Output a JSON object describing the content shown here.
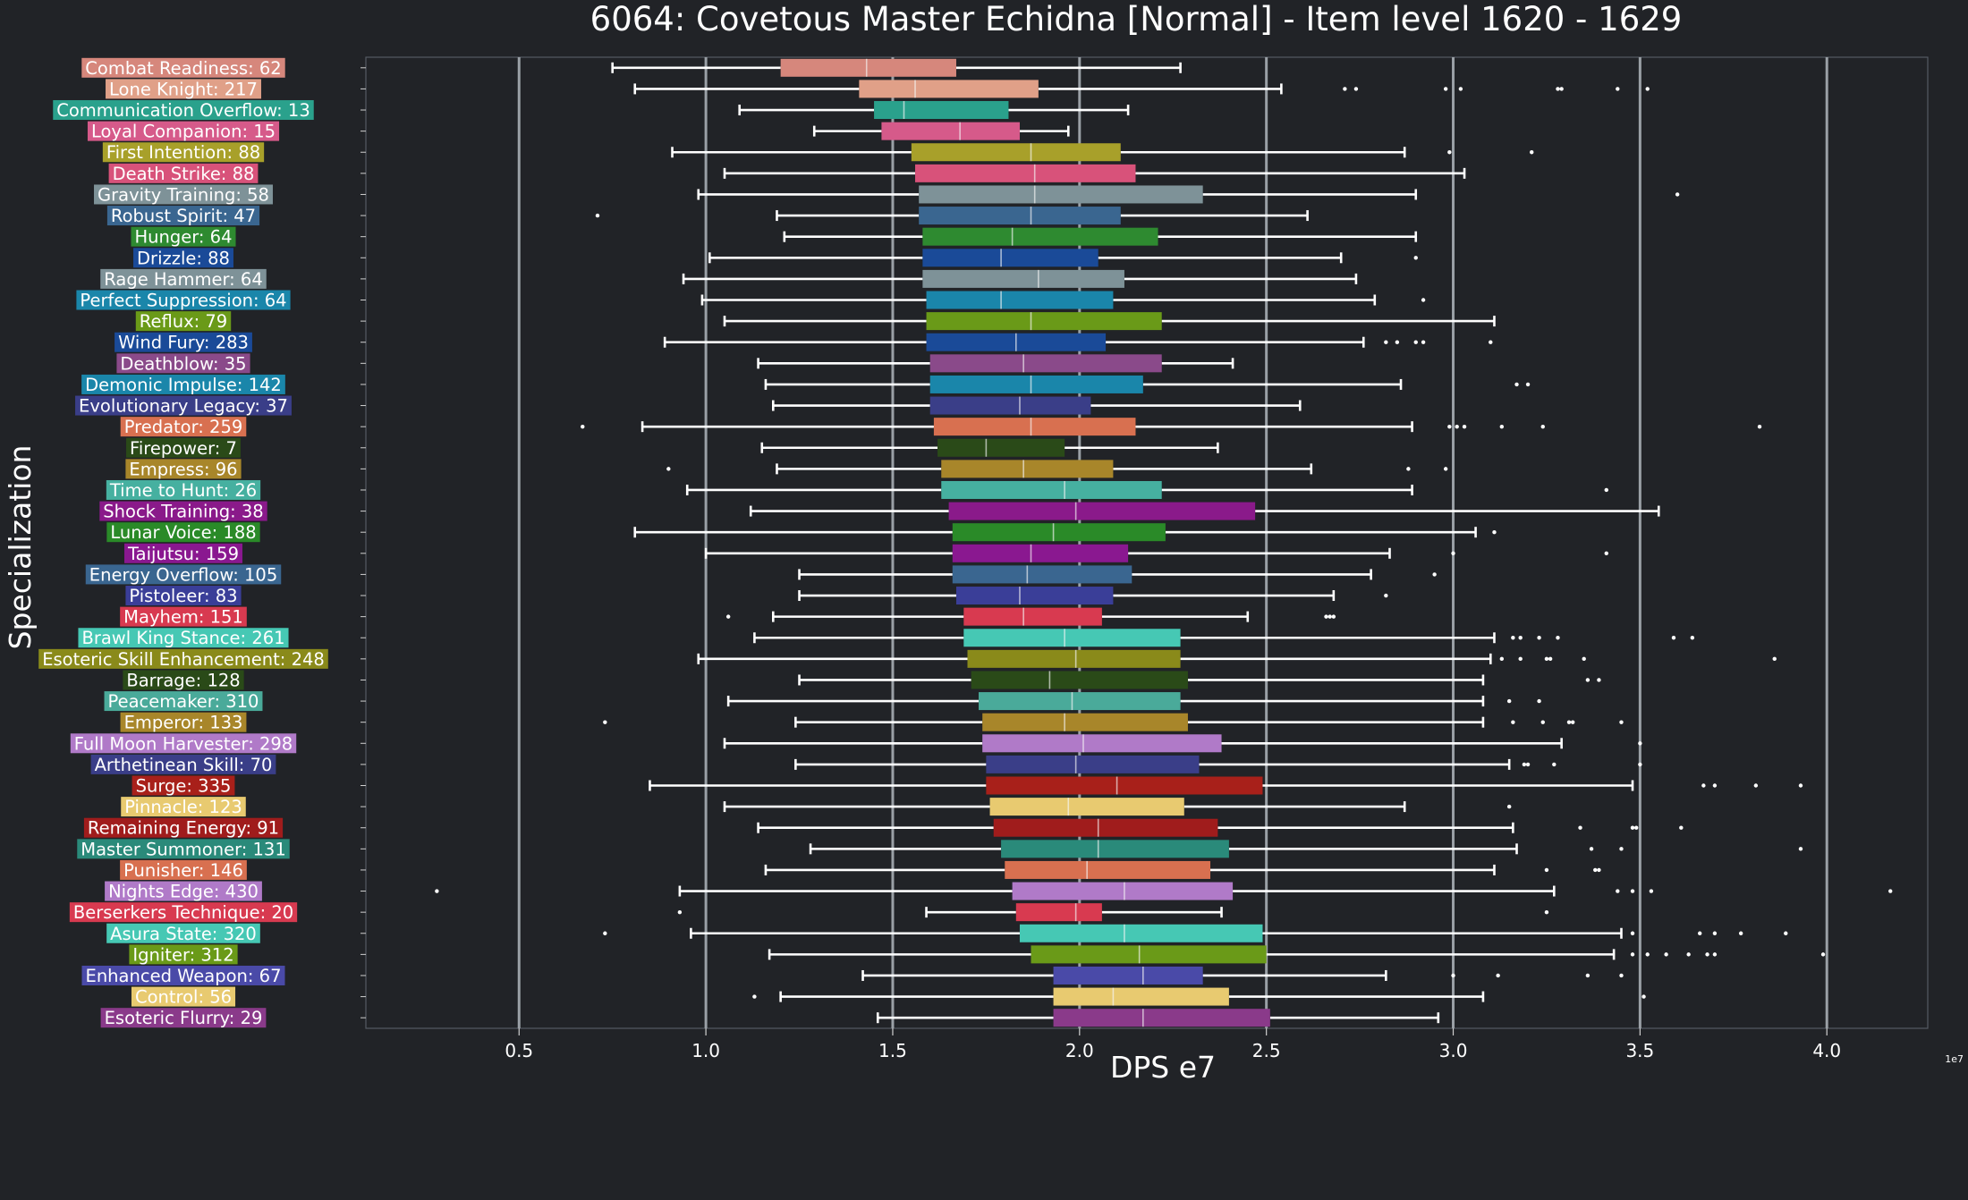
{
  "chart_data": {
    "type": "box",
    "title": "6064: Covetous Master Echidna [Normal] - Item level 1620 - 1629",
    "xlabel": "DPS e7",
    "ylabel": "Specialization",
    "x_offset_label": "1e7",
    "xlim": [
      0.09,
      4.27
    ],
    "xticks": [
      0.5,
      1.0,
      1.5,
      2.0,
      2.5,
      3.0,
      3.5,
      4.0
    ],
    "xtick_labels": [
      "0.5",
      "1.0",
      "1.5",
      "2.0",
      "2.5",
      "3.0",
      "3.5",
      "4.0"
    ],
    "grid": "vertical",
    "orientation": "horizontal",
    "series": [
      {
        "label": "Combat Readiness: 62",
        "color": "#d6877c",
        "whisker_low": 0.75,
        "q1": 1.2,
        "median": 1.43,
        "q3": 1.67,
        "whisker_high": 2.27,
        "outliers": []
      },
      {
        "label": "Lone Knight: 217",
        "color": "#e0a088",
        "whisker_low": 0.81,
        "q1": 1.41,
        "median": 1.56,
        "q3": 1.89,
        "whisker_high": 2.54,
        "outliers": [
          2.71,
          2.74,
          2.98,
          3.02,
          3.28,
          3.29,
          3.44,
          3.52
        ]
      },
      {
        "label": "Communication Overflow: 13",
        "color": "#2aa18c",
        "whisker_low": 1.09,
        "q1": 1.45,
        "median": 1.53,
        "q3": 1.81,
        "whisker_high": 2.13,
        "outliers": []
      },
      {
        "label": "Loyal Companion: 15",
        "color": "#d65a8a",
        "whisker_low": 1.29,
        "q1": 1.47,
        "median": 1.68,
        "q3": 1.84,
        "whisker_high": 1.97,
        "outliers": []
      },
      {
        "label": "First Intention: 88",
        "color": "#a8a02a",
        "whisker_low": 0.91,
        "q1": 1.55,
        "median": 1.87,
        "q3": 2.11,
        "whisker_high": 2.87,
        "outliers": [
          2.99,
          3.21
        ]
      },
      {
        "label": "Death Strike: 88",
        "color": "#d8527a",
        "whisker_low": 1.05,
        "q1": 1.56,
        "median": 1.88,
        "q3": 2.15,
        "whisker_high": 3.03,
        "outliers": []
      },
      {
        "label": "Gravity Training: 58",
        "color": "#7e9298",
        "whisker_low": 0.98,
        "q1": 1.57,
        "median": 1.88,
        "q3": 2.33,
        "whisker_high": 2.9,
        "outliers": [
          3.6
        ]
      },
      {
        "label": "Robust Spirit: 47",
        "color": "#3a6690",
        "whisker_low": 1.19,
        "q1": 1.57,
        "median": 1.87,
        "q3": 2.11,
        "whisker_high": 2.61,
        "outliers": [
          0.71
        ]
      },
      {
        "label": "Hunger: 64",
        "color": "#2e8a30",
        "whisker_low": 1.21,
        "q1": 1.58,
        "median": 1.82,
        "q3": 2.21,
        "whisker_high": 2.9,
        "outliers": []
      },
      {
        "label": "Drizzle: 88",
        "color": "#1a4a98",
        "whisker_low": 1.01,
        "q1": 1.58,
        "median": 1.79,
        "q3": 2.05,
        "whisker_high": 2.7,
        "outliers": [
          2.9
        ]
      },
      {
        "label": "Rage Hammer: 64",
        "color": "#7e9298",
        "whisker_low": 0.94,
        "q1": 1.58,
        "median": 1.89,
        "q3": 2.12,
        "whisker_high": 2.74,
        "outliers": []
      },
      {
        "label": "Perfect Suppression: 64",
        "color": "#1a86aa",
        "whisker_low": 0.99,
        "q1": 1.59,
        "median": 1.79,
        "q3": 2.09,
        "whisker_high": 2.79,
        "outliers": [
          2.92
        ]
      },
      {
        "label": "Reflux: 79",
        "color": "#6a9a18",
        "whisker_low": 1.05,
        "q1": 1.59,
        "median": 1.87,
        "q3": 2.22,
        "whisker_high": 3.11,
        "outliers": []
      },
      {
        "label": "Wind Fury: 283",
        "color": "#1a4a98",
        "whisker_low": 0.89,
        "q1": 1.59,
        "median": 1.83,
        "q3": 2.07,
        "whisker_high": 2.76,
        "outliers": [
          2.82,
          2.85,
          2.9,
          2.92,
          3.1
        ]
      },
      {
        "label": "Deathblow: 35",
        "color": "#8a4a8a",
        "whisker_low": 1.14,
        "q1": 1.6,
        "median": 1.85,
        "q3": 2.22,
        "whisker_high": 2.41,
        "outliers": []
      },
      {
        "label": "Demonic Impulse: 142",
        "color": "#1a86aa",
        "whisker_low": 1.16,
        "q1": 1.6,
        "median": 1.87,
        "q3": 2.17,
        "whisker_high": 2.86,
        "outliers": [
          3.17,
          3.2
        ]
      },
      {
        "label": "Evolutionary Legacy: 37",
        "color": "#3a3e88",
        "whisker_low": 1.18,
        "q1": 1.6,
        "median": 1.84,
        "q3": 2.03,
        "whisker_high": 2.59,
        "outliers": []
      },
      {
        "label": "Predator: 259",
        "color": "#d87050",
        "whisker_low": 0.83,
        "q1": 1.61,
        "median": 1.87,
        "q3": 2.15,
        "whisker_high": 2.89,
        "outliers": [
          0.67,
          2.99,
          3.01,
          3.03,
          3.13,
          3.24,
          3.82
        ]
      },
      {
        "label": "Firepower: 7",
        "color": "#2a4a18",
        "whisker_low": 1.15,
        "q1": 1.62,
        "median": 1.75,
        "q3": 1.96,
        "whisker_high": 2.37,
        "outliers": []
      },
      {
        "label": "Empress: 96",
        "color": "#a8862a",
        "whisker_low": 1.19,
        "q1": 1.63,
        "median": 1.85,
        "q3": 2.09,
        "whisker_high": 2.62,
        "outliers": [
          0.9,
          2.88,
          2.98
        ]
      },
      {
        "label": "Time to Hunt: 26",
        "color": "#46b0a0",
        "whisker_low": 0.95,
        "q1": 1.63,
        "median": 1.96,
        "q3": 2.22,
        "whisker_high": 2.89,
        "outliers": [
          3.41
        ]
      },
      {
        "label": "Shock Training: 38",
        "color": "#8a1a8a",
        "whisker_low": 1.12,
        "q1": 1.65,
        "median": 1.99,
        "q3": 2.47,
        "whisker_high": 3.55,
        "outliers": []
      },
      {
        "label": "Lunar Voice: 188",
        "color": "#2a8a28",
        "whisker_low": 0.81,
        "q1": 1.66,
        "median": 1.93,
        "q3": 2.23,
        "whisker_high": 3.06,
        "outliers": [
          3.11
        ]
      },
      {
        "label": "Taijutsu: 159",
        "color": "#8a1890",
        "whisker_low": 1.0,
        "q1": 1.66,
        "median": 1.87,
        "q3": 2.13,
        "whisker_high": 2.83,
        "outliers": [
          3.0,
          3.41
        ]
      },
      {
        "label": "Energy Overflow: 105",
        "color": "#3a6690",
        "whisker_low": 1.25,
        "q1": 1.66,
        "median": 1.86,
        "q3": 2.14,
        "whisker_high": 2.78,
        "outliers": [
          2.95
        ]
      },
      {
        "label": "Pistoleer: 83",
        "color": "#3a3e98",
        "whisker_low": 1.25,
        "q1": 1.67,
        "median": 1.84,
        "q3": 2.09,
        "whisker_high": 2.68,
        "outliers": [
          2.82
        ]
      },
      {
        "label": "Mayhem: 151",
        "color": "#d83a50",
        "whisker_low": 1.18,
        "q1": 1.69,
        "median": 1.85,
        "q3": 2.06,
        "whisker_high": 2.45,
        "outliers": [
          1.06,
          2.66,
          2.67,
          2.68
        ]
      },
      {
        "label": "Brawl King Stance: 261",
        "color": "#46c8b4",
        "whisker_low": 1.13,
        "q1": 1.69,
        "median": 1.96,
        "q3": 2.27,
        "whisker_high": 3.11,
        "outliers": [
          3.16,
          3.18,
          3.23,
          3.28,
          3.59,
          3.64
        ]
      },
      {
        "label": "Esoteric Skill Enhancement: 248",
        "color": "#8a8a1a",
        "whisker_low": 0.98,
        "q1": 1.7,
        "median": 1.99,
        "q3": 2.27,
        "whisker_high": 3.1,
        "outliers": [
          3.13,
          3.18,
          3.25,
          3.26,
          3.35,
          3.86
        ]
      },
      {
        "label": "Barrage: 128",
        "color": "#2a4a18",
        "whisker_low": 1.25,
        "q1": 1.71,
        "median": 1.92,
        "q3": 2.29,
        "whisker_high": 3.08,
        "outliers": [
          3.36,
          3.39
        ]
      },
      {
        "label": "Peacemaker: 310",
        "color": "#4aaa9a",
        "whisker_low": 1.06,
        "q1": 1.73,
        "median": 1.98,
        "q3": 2.27,
        "whisker_high": 3.08,
        "outliers": [
          3.15,
          3.23
        ]
      },
      {
        "label": "Emperor: 133",
        "color": "#a8862a",
        "whisker_low": 1.24,
        "q1": 1.74,
        "median": 1.96,
        "q3": 2.29,
        "whisker_high": 3.08,
        "outliers": [
          0.73,
          3.16,
          3.24,
          3.31,
          3.32,
          3.45
        ]
      },
      {
        "label": "Full Moon Harvester: 298",
        "color": "#b07ac8",
        "whisker_low": 1.05,
        "q1": 1.74,
        "median": 2.01,
        "q3": 2.38,
        "whisker_high": 3.29,
        "outliers": [
          3.5
        ]
      },
      {
        "label": "Arthetinean Skill: 70",
        "color": "#3a3e88",
        "whisker_low": 1.24,
        "q1": 1.75,
        "median": 1.99,
        "q3": 2.32,
        "whisker_high": 3.15,
        "outliers": [
          3.19,
          3.2,
          3.27,
          3.5
        ]
      },
      {
        "label": "Surge: 335",
        "color": "#a8201a",
        "whisker_low": 0.85,
        "q1": 1.75,
        "median": 2.1,
        "q3": 2.49,
        "whisker_high": 3.48,
        "outliers": [
          3.67,
          3.7,
          3.81,
          3.93
        ]
      },
      {
        "label": "Pinnacle: 123",
        "color": "#e8ca70",
        "whisker_low": 1.05,
        "q1": 1.76,
        "median": 1.97,
        "q3": 2.28,
        "whisker_high": 2.87,
        "outliers": [
          3.15
        ]
      },
      {
        "label": "Remaining Energy: 91",
        "color": "#a01c1c",
        "whisker_low": 1.14,
        "q1": 1.77,
        "median": 2.05,
        "q3": 2.37,
        "whisker_high": 3.16,
        "outliers": [
          3.34,
          3.48,
          3.49,
          3.61
        ]
      },
      {
        "label": "Master Summoner: 131",
        "color": "#2a8a7a",
        "whisker_low": 1.28,
        "q1": 1.79,
        "median": 2.05,
        "q3": 2.4,
        "whisker_high": 3.17,
        "outliers": [
          3.37,
          3.45,
          3.93
        ]
      },
      {
        "label": "Punisher: 146",
        "color": "#d87050",
        "whisker_low": 1.16,
        "q1": 1.8,
        "median": 2.02,
        "q3": 2.35,
        "whisker_high": 3.11,
        "outliers": [
          3.25,
          3.38,
          3.39
        ]
      },
      {
        "label": "Nights Edge: 430",
        "color": "#b07ac8",
        "whisker_low": 0.93,
        "q1": 1.82,
        "median": 2.12,
        "q3": 2.41,
        "whisker_high": 3.27,
        "outliers": [
          0.28,
          3.44,
          3.48,
          3.53,
          4.17
        ]
      },
      {
        "label": "Berserkers Technique: 20",
        "color": "#d83a50",
        "whisker_low": 1.59,
        "q1": 1.83,
        "median": 1.99,
        "q3": 2.06,
        "whisker_high": 2.38,
        "outliers": [
          0.93,
          3.25
        ]
      },
      {
        "label": "Asura State: 320",
        "color": "#46c8b4",
        "whisker_low": 0.96,
        "q1": 1.84,
        "median": 2.12,
        "q3": 2.49,
        "whisker_high": 3.45,
        "outliers": [
          0.73,
          3.48,
          3.66,
          3.7,
          3.77,
          3.89
        ]
      },
      {
        "label": "Igniter: 312",
        "color": "#6a9a18",
        "whisker_low": 1.17,
        "q1": 1.87,
        "median": 2.16,
        "q3": 2.5,
        "whisker_high": 3.43,
        "outliers": [
          3.48,
          3.52,
          3.57,
          3.63,
          3.68,
          3.7,
          3.99
        ]
      },
      {
        "label": "Enhanced Weapon: 67",
        "color": "#4a4aa8",
        "whisker_low": 1.42,
        "q1": 1.93,
        "median": 2.17,
        "q3": 2.33,
        "whisker_high": 2.82,
        "outliers": [
          3.0,
          3.12,
          3.36,
          3.45
        ]
      },
      {
        "label": "Control: 56",
        "color": "#e8ca70",
        "whisker_low": 1.2,
        "q1": 1.93,
        "median": 2.09,
        "q3": 2.4,
        "whisker_high": 3.08,
        "outliers": [
          1.13,
          3.51
        ]
      },
      {
        "label": "Esoteric Flurry: 29",
        "color": "#8a3a8a",
        "whisker_low": 1.46,
        "q1": 1.93,
        "median": 2.17,
        "q3": 2.51,
        "whisker_high": 2.96,
        "outliers": []
      }
    ]
  }
}
